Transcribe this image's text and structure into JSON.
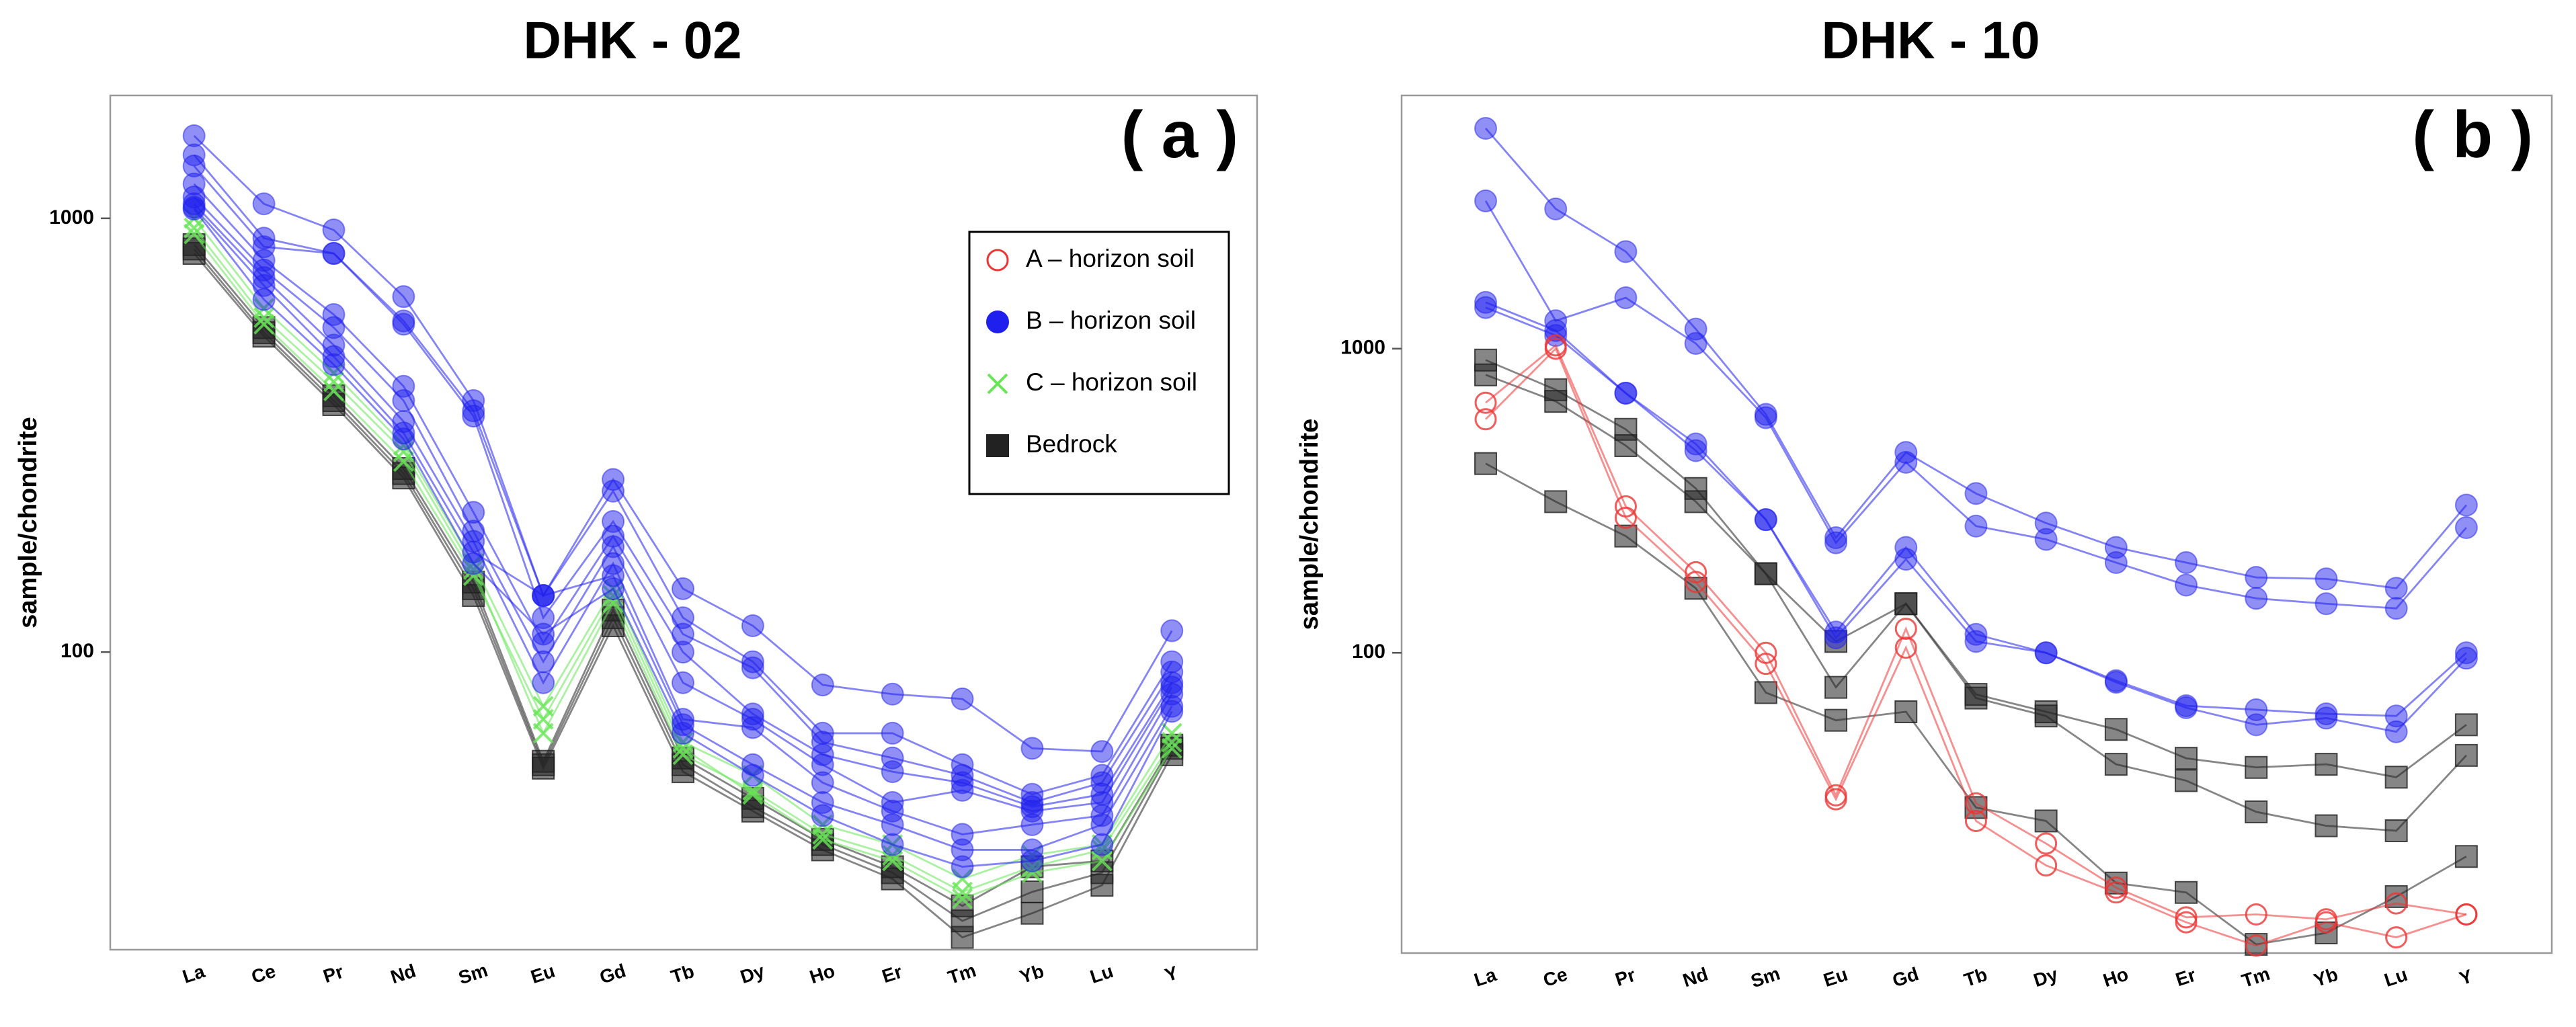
{
  "chart_data": [
    {
      "type": "line",
      "title": "DHK - 02",
      "annotation": "( a )",
      "ylabel": "sample/chondrite",
      "categories": [
        "La",
        "Ce",
        "Pr",
        "Nd",
        "Sm",
        "Eu",
        "Gd",
        "Tb",
        "Dy",
        "Ho",
        "Er",
        "Tm",
        "Yb",
        "Lu",
        "Y"
      ],
      "log_scale": true,
      "ylim": [
        20.6,
        1920
      ],
      "yticks": [
        100,
        1000
      ],
      "legend": "upper right",
      "series": [
        {
          "name": "A – horizon soil",
          "color": "#ee3333",
          "marker": "open-circle",
          "lines": []
        },
        {
          "name": "B – horizon soil",
          "color": "#1f1fee",
          "marker": "circle",
          "lines": [
            [
              1550,
              1080,
              940,
              660,
              380,
              135,
              250,
              140,
              115,
              84,
              80,
              78,
              60,
              59,
              112
            ],
            [
              1400,
              900,
              830,
              580,
              360,
              135,
              235,
              120,
              95,
              65,
              65,
              55,
              47,
              52,
              95
            ],
            [
              1320,
              860,
              830,
              570,
              350,
              120,
              200,
              110,
              92,
              62,
              57,
              52,
              45,
              50,
              90
            ],
            [
              1200,
              800,
              600,
              410,
              210,
              105,
              185,
              100,
              72,
              58,
              53,
              50,
              44,
              47,
              85
            ],
            [
              1120,
              760,
              560,
              380,
              190,
              95,
              175,
              85,
              70,
              55,
              45,
              48,
              43,
              45,
              83
            ],
            [
              1080,
              730,
              510,
              340,
              180,
              85,
              160,
              70,
              67,
              50,
              43,
              38,
              40,
              42,
              80
            ],
            [
              1060,
              700,
              480,
              320,
              170,
              135,
              150,
              68,
              55,
              45,
              40,
              35,
              35,
              40,
              75
            ],
            [
              1050,
              650,
              460,
              310,
              160,
              110,
              140,
              65,
              52,
              42,
              36,
              32,
              33,
              36,
              73
            ]
          ]
        },
        {
          "name": "C – horizon soil",
          "color": "#66e655",
          "marker": "x",
          "lines": [
            [
              1000,
              620,
              440,
              300,
              160,
              75,
              140,
              62,
              52,
              40,
              36,
              30,
              34,
              36,
              65
            ],
            [
              950,
              590,
              420,
              290,
              155,
              65,
              130,
              58,
              48,
              38,
              34,
              28,
              32,
              35,
              62
            ],
            [
              920,
              570,
              400,
              275,
              150,
              70,
              135,
              60,
              47,
              37,
              33,
              27,
              31,
              33,
              60
            ]
          ]
        },
        {
          "name": "Bedrock",
          "color": "#222222",
          "marker": "square",
          "lines": [
            [
              870,
              560,
              390,
              265,
              145,
              56,
              125,
              57,
              46,
              37,
              32,
              26,
              32,
              33,
              61
            ],
            [
              850,
              545,
              380,
              258,
              140,
              55,
              120,
              55,
              44,
              36,
              31,
              24,
              28,
              31,
              60
            ],
            [
              830,
              535,
              372,
              252,
              135,
              54,
              115,
              53,
              43,
              35,
              30,
              22,
              25,
              29,
              58
            ]
          ]
        }
      ]
    },
    {
      "type": "line",
      "title": "DHK - 10",
      "annotation": "( b )",
      "ylabel": "sample/chondrite",
      "categories": [
        "La",
        "Ce",
        "Pr",
        "Nd",
        "Sm",
        "Eu",
        "Gd",
        "Tb",
        "Dy",
        "Ho",
        "Er",
        "Tm",
        "Yb",
        "Lu",
        "Y"
      ],
      "log_scale": true,
      "ylim": [
        10.3,
        6800
      ],
      "yticks": [
        100,
        1000
      ],
      "series": [
        {
          "color": "#ee3333",
          "marker": "open-circle",
          "lines": [
            [
              664,
              1025,
              303,
              184,
              100,
              34,
              120,
              32,
              23.6,
              16.9,
              13.5,
              13.8,
              13.3,
              15,
              13.8
            ],
            [
              586,
              1000,
              278,
              171,
              92,
              33,
              104,
              28,
              20,
              16.3,
              13,
              10.9,
              13,
              11.6,
              13.8
            ]
          ]
        },
        {
          "color": "#1f1fee",
          "marker": "circle",
          "lines": [
            [
              5300,
              2880,
              2085,
              1160,
              608,
              239,
              456,
              334,
              267,
              222,
              198,
              177,
              175,
              163,
              306
            ],
            [
              3060,
              1235,
              1470,
              1040,
              593,
              230,
              423,
              261,
              236,
              198,
              167,
              151,
              145,
              140,
              258
            ],
            [
              1420,
              1147,
              714,
              486,
              274,
              117,
              222,
              115,
              100,
              81,
              67,
              65,
              63,
              62,
              100
            ],
            [
              1365,
              1105,
              714,
              462,
              274,
              112,
              203,
              109,
              100,
              80,
              66,
              58,
              61,
              55,
              96
            ]
          ]
        },
        {
          "color": "#222222",
          "marker": "square",
          "lines": [
            [
              917,
              733,
              543,
              347,
              182,
              109,
              145,
              73,
              64,
              56,
              45,
              42,
              43,
              39,
              58
            ],
            [
              820,
              671,
              480,
              314,
              182,
              77,
              145,
              71,
              62,
              43,
              38,
              30,
              27,
              26,
              46
            ],
            [
              419,
              314,
              242,
              163,
              74,
              60,
              64,
              31,
              28,
              17.5,
              16.3,
              11,
              12,
              15.8,
              21.4
            ]
          ]
        }
      ]
    }
  ]
}
